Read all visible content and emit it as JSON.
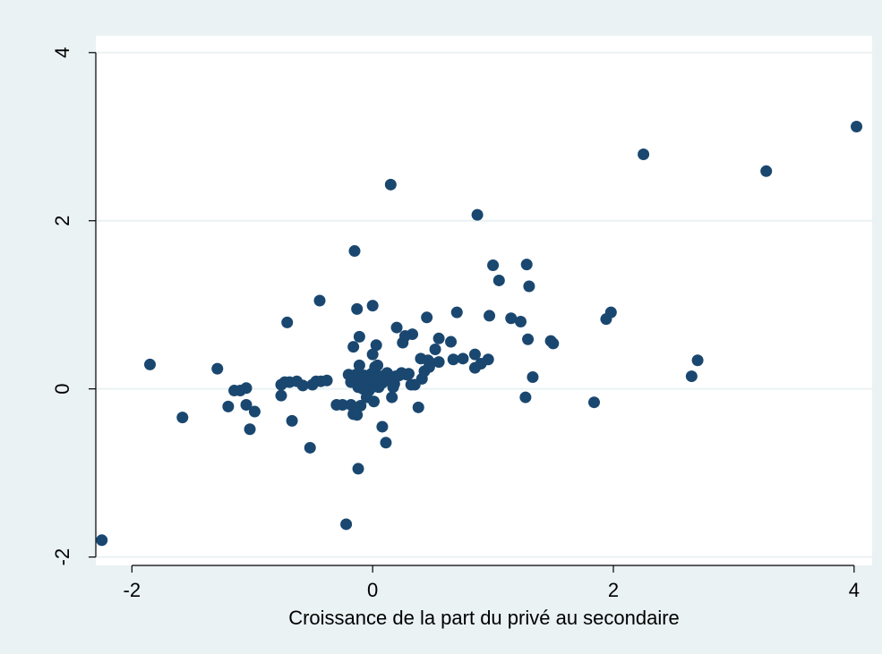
{
  "chart_data": {
    "type": "scatter",
    "title": "",
    "xlabel": "Croissance de la part du privé au secondaire",
    "ylabel": "",
    "xlim": [
      -2.3,
      4.15
    ],
    "ylim": [
      -2.1,
      4.2
    ],
    "xticks": [
      -2,
      0,
      2,
      4
    ],
    "yticks": [
      -2,
      0,
      2,
      4
    ],
    "xtick_labels": [
      "-2",
      "0",
      "2",
      "4"
    ],
    "ytick_labels": [
      "-2",
      "0",
      "2",
      "4"
    ],
    "grid": "horizontal",
    "colors": {
      "background": "#eaf2f3",
      "plot_area": "#ffffff",
      "gridline": "#eaf2f3",
      "marker": "#1a476f"
    },
    "series": [
      {
        "x": [
          -2.25,
          -1.85,
          -1.58,
          -1.29,
          -1.2,
          -1.15,
          -1.1,
          -1.05,
          -1.05,
          -1.02,
          -0.98,
          -0.76,
          -0.76,
          -0.73,
          -0.71,
          -0.69,
          -0.67,
          -0.63,
          -0.58,
          -0.52,
          -0.5,
          -0.47,
          -0.44,
          -0.43,
          -0.38,
          -0.3,
          -0.25,
          -0.22,
          -0.2,
          -0.18,
          -0.18,
          -0.16,
          -0.16,
          -0.15,
          -0.14,
          -0.13,
          -0.13,
          -0.12,
          -0.12,
          -0.11,
          -0.11,
          -0.1,
          -0.1,
          -0.09,
          -0.08,
          -0.08,
          -0.07,
          -0.06,
          -0.06,
          -0.05,
          -0.04,
          -0.04,
          -0.03,
          -0.02,
          -0.02,
          -0.01,
          0.0,
          0.0,
          0.0,
          0.01,
          0.01,
          0.02,
          0.02,
          0.03,
          0.04,
          0.04,
          0.05,
          0.06,
          0.07,
          0.08,
          0.08,
          0.09,
          0.1,
          0.11,
          0.12,
          0.13,
          0.14,
          0.15,
          0.16,
          0.17,
          0.18,
          0.19,
          0.2,
          0.22,
          0.24,
          0.25,
          0.27,
          0.28,
          0.3,
          0.32,
          0.33,
          0.35,
          0.38,
          0.4,
          0.41,
          0.43,
          0.45,
          0.46,
          0.47,
          0.48,
          0.52,
          0.55,
          0.55,
          0.65,
          0.67,
          0.7,
          0.75,
          0.85,
          0.85,
          0.87,
          0.9,
          0.96,
          0.97,
          1.0,
          1.05,
          1.15,
          1.23,
          1.27,
          1.28,
          1.29,
          1.3,
          1.33,
          1.48,
          1.5,
          1.84,
          1.94,
          1.98,
          2.25,
          2.65,
          2.7,
          3.27,
          4.02
        ],
        "y": [
          -1.8,
          0.29,
          -0.34,
          0.24,
          -0.21,
          -0.02,
          -0.02,
          -0.19,
          0.01,
          -0.48,
          -0.27,
          0.05,
          -0.08,
          0.08,
          0.79,
          0.08,
          -0.38,
          0.09,
          0.04,
          -0.7,
          0.05,
          0.09,
          1.05,
          0.09,
          0.1,
          -0.19,
          -0.19,
          -1.61,
          0.17,
          -0.19,
          0.08,
          -0.3,
          0.5,
          1.64,
          0.17,
          -0.31,
          0.95,
          0.02,
          -0.95,
          0.62,
          0.28,
          0.12,
          -0.2,
          0.1,
          0.06,
          0.0,
          0.16,
          0.09,
          0.0,
          -0.1,
          0.14,
          0.02,
          -0.02,
          0.05,
          0.11,
          0.18,
          0.99,
          0.41,
          0.08,
          -0.15,
          0.1,
          0.26,
          0.03,
          0.52,
          0.12,
          0.28,
          0.02,
          0.06,
          0.15,
          0.07,
          -0.45,
          0.15,
          0.1,
          -0.64,
          0.19,
          0.12,
          0.14,
          2.43,
          -0.1,
          0.02,
          0.06,
          0.15,
          0.73,
          0.16,
          0.19,
          0.55,
          0.63,
          0.17,
          0.18,
          0.05,
          0.65,
          0.05,
          -0.22,
          0.36,
          0.12,
          0.21,
          0.85,
          0.34,
          0.26,
          0.31,
          0.47,
          0.32,
          0.6,
          0.56,
          0.35,
          0.91,
          0.36,
          0.25,
          0.41,
          2.07,
          0.3,
          0.35,
          0.87,
          1.47,
          1.29,
          0.84,
          0.8,
          -0.1,
          1.48,
          0.59,
          1.22,
          0.14,
          0.57,
          0.54,
          -0.16,
          0.83,
          0.91,
          2.79,
          0.15,
          0.34,
          2.59,
          3.12
        ]
      }
    ]
  }
}
